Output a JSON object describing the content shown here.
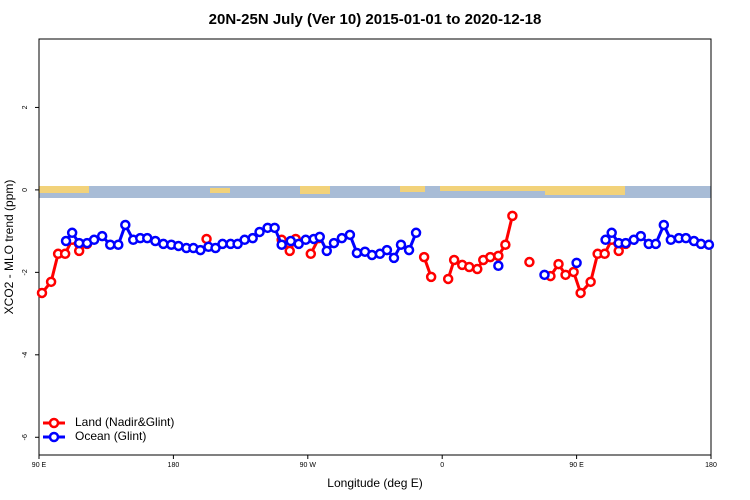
{
  "chart_data": {
    "type": "line",
    "title": "20N-25N July (Ver 10)   2015-01-01 to 2020-12-18",
    "x_label": "Longitude (deg E)",
    "y_label": "XCO2 - MLO trend (ppm)",
    "xlim": [
      90,
      540
    ],
    "xticks": [
      {
        "value": 90,
        "label": "90 E"
      },
      180,
      {
        "value": 270,
        "label": "90 W"
      },
      {
        "value": 360,
        "label": "0"
      },
      {
        "value": 450,
        "label": "90 E"
      },
      {
        "value": 540,
        "label": "180"
      }
    ],
    "ylim": [
      -6.43,
      3.66
    ],
    "yticks": [
      -6,
      -4,
      -2,
      0,
      2
    ],
    "legend": "bottom-left",
    "series": [
      {
        "name": "Land (Nadir&Glint)",
        "color": "#ff0000",
        "x": [
          92.0,
          98.1,
          102.8,
          107.5,
          112.2,
          116.9,
          122.2,
          null,
          202.2,
          null,
          252.5,
          257.9,
          261.9,
          null,
          272.0,
          277.4,
          null,
          347.9,
          352.6,
          null,
          364.0,
          368.0,
          373.4,
          378.1,
          383.5,
          387.5,
          392.2,
          397.6,
          402.3,
          407.0,
          null,
          418.4,
          null,
          432.5,
          437.9,
          442.6,
          448.0,
          452.7,
          459.4,
          464.1,
          468.8,
          473.5,
          478.2,
          482.9
        ],
        "values": [
          -2.5,
          -2.23,
          -1.55,
          -1.55,
          -1.21,
          -1.48,
          -1.31,
          null,
          -1.19,
          null,
          -1.21,
          -1.48,
          -1.19,
          null,
          -1.55,
          -1.17,
          null,
          -1.63,
          -2.11,
          null,
          -2.16,
          -1.7,
          -1.82,
          -1.87,
          -1.92,
          -1.7,
          -1.63,
          -1.6,
          -1.33,
          -0.63,
          null,
          -1.75,
          null,
          -2.09,
          -1.8,
          -2.06,
          -1.99,
          -2.5,
          -2.23,
          -1.55,
          -1.55,
          -1.21,
          -1.48,
          -1.31
        ]
      },
      {
        "name": "Ocean (Glint)",
        "color": "#0000ff",
        "x": [
          108.1,
          112.2,
          116.9,
          122.2,
          126.9,
          132.3,
          137.7,
          143.1,
          147.8,
          153.1,
          157.8,
          162.5,
          167.9,
          173.3,
          178.6,
          183.4,
          188.7,
          193.4,
          198.1,
          203.5,
          208.2,
          212.9,
          218.3,
          223.0,
          227.7,
          233.1,
          237.7,
          243.1,
          247.8,
          252.5,
          258.6,
          263.9,
          268.6,
          274.0,
          278.0,
          282.7,
          287.5,
          292.8,
          298.2,
          302.9,
          308.3,
          313.0,
          318.3,
          323.0,
          327.7,
          332.4,
          337.8,
          342.5,
          null,
          397.6,
          null,
          428.5,
          null,
          450.0,
          null,
          469.4,
          473.5,
          478.2,
          482.9,
          488.3,
          493.0,
          498.3,
          503.0,
          508.4,
          513.1,
          518.5,
          523.2,
          528.6,
          533.3,
          538.6
        ],
        "values": [
          -1.24,
          -1.04,
          -1.29,
          -1.29,
          -1.21,
          -1.12,
          -1.33,
          -1.33,
          -0.85,
          -1.21,
          -1.17,
          -1.17,
          -1.24,
          -1.31,
          -1.33,
          -1.36,
          -1.41,
          -1.41,
          -1.46,
          -1.38,
          -1.41,
          -1.31,
          -1.31,
          -1.31,
          -1.21,
          -1.17,
          -1.02,
          -0.92,
          -0.92,
          -1.33,
          -1.24,
          -1.31,
          -1.21,
          -1.19,
          -1.14,
          -1.48,
          -1.29,
          -1.17,
          -1.09,
          -1.53,
          -1.5,
          -1.58,
          -1.55,
          -1.46,
          -1.65,
          -1.33,
          -1.46,
          -1.04,
          null,
          -1.84,
          null,
          -2.06,
          null,
          -1.77,
          null,
          -1.21,
          -1.04,
          -1.29,
          -1.29,
          -1.21,
          -1.12,
          -1.31,
          -1.31,
          -0.85,
          -1.21,
          -1.17,
          -1.17,
          -1.24,
          -1.31,
          -1.33
        ]
      }
    ]
  }
}
